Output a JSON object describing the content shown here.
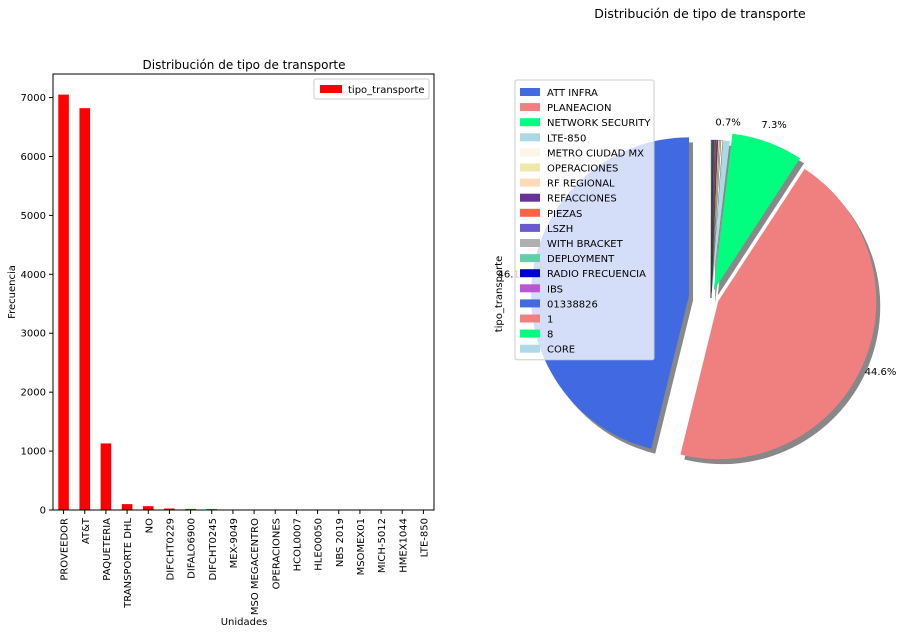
{
  "figure": {
    "suptitle": "Distribución de tipo de transporte"
  },
  "chart_data": [
    {
      "type": "bar",
      "title": "Distribución de tipo de transporte",
      "xlabel": "Unidades",
      "ylabel": "Frecuencia",
      "ylim": [
        0,
        7400
      ],
      "yticks": [
        0,
        1000,
        2000,
        3000,
        4000,
        5000,
        6000,
        7000
      ],
      "legend": {
        "position": "top-right",
        "entries": [
          "tipo_transporte"
        ]
      },
      "bar_color": "#ff0000",
      "categories": [
        "PROVEEDOR",
        "AT&T",
        "PAQUETERIA",
        "TRANSPORTE DHL",
        "NO",
        "DIFCHT0229",
        "DIFALO6900",
        "DIFCHT0245",
        "MEX-9049",
        "MSO MEGACENTRO",
        "OPERACIONES",
        "HCOL0007",
        "HLEO0050",
        "NBS 2019",
        "MSOMEX01",
        "MICH-5012",
        "HMEX1044",
        "LTE-850"
      ],
      "series": [
        {
          "name": "tipo_transporte",
          "values": [
            7050,
            6820,
            1130,
            100,
            65,
            25,
            18,
            15,
            5,
            4,
            3,
            2,
            2,
            2,
            1,
            1,
            1,
            1
          ]
        }
      ],
      "grid": false
    },
    {
      "type": "pie",
      "title": "Distribución de tipo de transporte",
      "ylabel": "tipo_transporte",
      "legend": {
        "position": "top-left"
      },
      "labels": [
        "ATT INFRA",
        "PLANEACION",
        "NETWORK SECURITY",
        "LTE-850",
        "METRO CIUDAD MX",
        "OPERACIONES",
        "RF REGIONAL",
        "REFACCIONES",
        "PIEZAS",
        "LSZH",
        "WITH BRACKET",
        "DEPLOYMENT",
        "RADIO FRECUENCIA",
        "IBS",
        "01338826",
        "1",
        "8",
        "CORE"
      ],
      "colors": [
        "#4169e1",
        "#f08080",
        "#00ff7f",
        "#add8e6",
        "#fdf5e6",
        "#eee8aa",
        "#ffdab9",
        "#663399",
        "#ff6347",
        "#6a5acd",
        "#b0b0b0",
        "#66cdaa",
        "#0000cd",
        "#ba55d3",
        "#4169e1",
        "#f08080",
        "#00ff7f",
        "#add8e6"
      ],
      "values": [
        46.1,
        44.6,
        7.3,
        0.7,
        0.2,
        0.15,
        0.15,
        0.12,
        0.1,
        0.08,
        0.07,
        0.06,
        0.05,
        0.05,
        0.04,
        0.04,
        0.04,
        0.04
      ],
      "pct_labels": [
        "46.1%",
        "44.6%",
        "7.3%",
        "0.7%"
      ],
      "shadow": true,
      "explode": true
    }
  ]
}
